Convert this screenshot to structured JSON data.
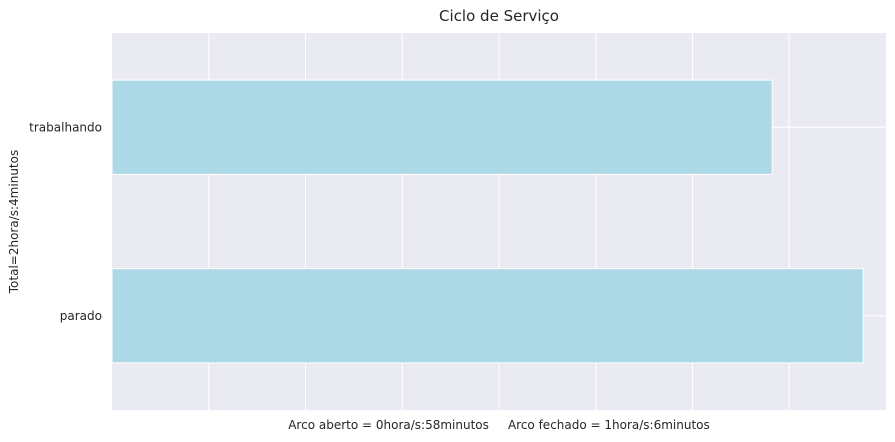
{
  "chart_data": {
    "type": "bar",
    "orientation": "horizontal",
    "title": "Ciclo de Serviço",
    "ylabel": "Total=2hora/s:4minutos",
    "xlabel": "Arco aberto = 0hora/s:58minutos     Arco fechado = 1hora/s:6minutos",
    "categories": [
      "trabalhando",
      "parado"
    ],
    "values": [
      58,
      66
    ],
    "xlim": [
      0,
      68
    ],
    "grid": true,
    "xtick_labels_visible": false,
    "colors": {
      "bar": "#add8e6",
      "plot_background": "#eaeaf2",
      "grid": "#ffffff"
    }
  }
}
